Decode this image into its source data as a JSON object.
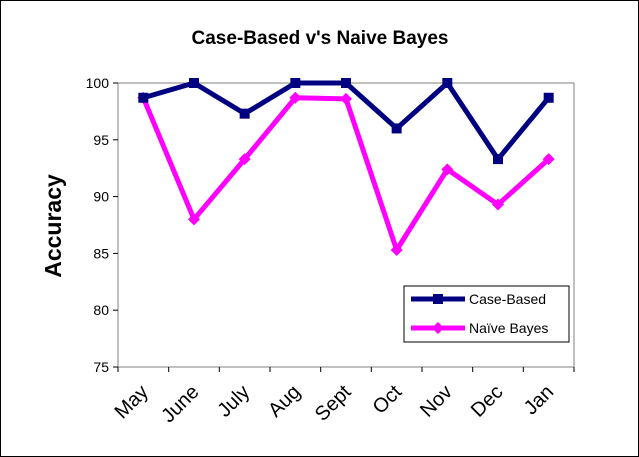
{
  "chart_data": {
    "type": "line",
    "title": "Case-Based v's Naive Bayes",
    "xlabel": "",
    "ylabel": "Accuracy",
    "categories": [
      "May",
      "June",
      "July",
      "Aug",
      "Sept",
      "Oct",
      "Nov",
      "Dec",
      "Jan"
    ],
    "ylim": [
      75,
      100
    ],
    "yticks": [
      75,
      80,
      85,
      90,
      95,
      100
    ],
    "grid": false,
    "legend_position": "bottom-right",
    "series": [
      {
        "name": "Case-Based",
        "color": "#000080",
        "marker": "square",
        "values": [
          98.7,
          100,
          97.3,
          100,
          100,
          96,
          100,
          93.3,
          98.7
        ]
      },
      {
        "name": "Naïve Bayes",
        "color": "#ff00ff",
        "marker": "diamond",
        "values": [
          98.7,
          88,
          93.3,
          98.7,
          98.6,
          85.3,
          92.4,
          89.3,
          93.3
        ]
      }
    ]
  }
}
